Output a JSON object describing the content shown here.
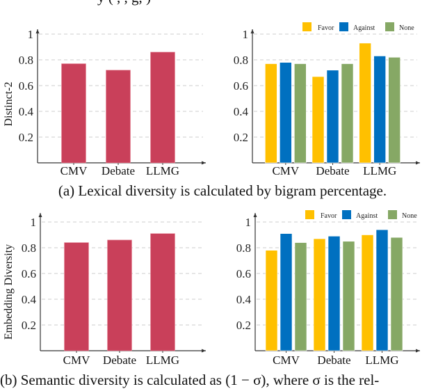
{
  "top_cut_text": "y (                    ,        ,     g,                     )",
  "captions": {
    "a": "(a) Lexical diversity is calculated by bigram percentage.",
    "b": "(b) Semantic diversity is calculated as (1 − σ), where σ is the rel-"
  },
  "colors": {
    "single": "#c9405a",
    "favor": "#ffc000",
    "against": "#0070c0",
    "none": "#86a865",
    "grid": "#cccccc",
    "axis": "#333333"
  },
  "chart_data": [
    {
      "type": "bar",
      "panel": "top-left",
      "title": "",
      "xlabel": "",
      "ylabel": "Distinct-2",
      "categories": [
        "CMV",
        "Debate",
        "LLMG"
      ],
      "values": [
        0.77,
        0.72,
        0.86
      ],
      "ylim": [
        0,
        1
      ],
      "yticks": [
        "0.2",
        "0.4",
        "0.6",
        "0.8",
        "1"
      ],
      "grid": true,
      "legend": null
    },
    {
      "type": "bar",
      "panel": "top-right",
      "title": "",
      "xlabel": "",
      "ylabel": "",
      "categories": [
        "CMV",
        "Debate",
        "LLMG"
      ],
      "series": [
        {
          "name": "Favor",
          "color_key": "favor",
          "values": [
            0.77,
            0.67,
            0.93
          ]
        },
        {
          "name": "Against",
          "color_key": "against",
          "values": [
            0.78,
            0.72,
            0.83
          ]
        },
        {
          "name": "None",
          "color_key": "none",
          "values": [
            0.77,
            0.77,
            0.82
          ]
        }
      ],
      "ylim": [
        0,
        1
      ],
      "yticks": [
        "0.2",
        "0.4",
        "0.6",
        "0.8",
        "1"
      ],
      "grid": true,
      "legend": "top-right"
    },
    {
      "type": "bar",
      "panel": "bottom-left",
      "title": "",
      "xlabel": "",
      "ylabel": "Embedding Diversity",
      "categories": [
        "CMV",
        "Debate",
        "LLMG"
      ],
      "values": [
        0.84,
        0.86,
        0.91
      ],
      "ylim": [
        0,
        1
      ],
      "yticks": [
        "0.2",
        "0.4",
        "0.6",
        "0.8",
        "1"
      ],
      "grid": true,
      "legend": null
    },
    {
      "type": "bar",
      "panel": "bottom-right",
      "title": "",
      "xlabel": "",
      "ylabel": "",
      "categories": [
        "CMV",
        "Debate",
        "LLMG"
      ],
      "series": [
        {
          "name": "Favor",
          "color_key": "favor",
          "values": [
            0.78,
            0.87,
            0.9
          ]
        },
        {
          "name": "Against",
          "color_key": "against",
          "values": [
            0.91,
            0.89,
            0.94
          ]
        },
        {
          "name": "None",
          "color_key": "none",
          "values": [
            0.84,
            0.85,
            0.88
          ]
        }
      ],
      "ylim": [
        0,
        1
      ],
      "yticks": [
        "0.2",
        "0.4",
        "0.6",
        "0.8",
        "1"
      ],
      "grid": true,
      "legend": "top-right"
    }
  ]
}
